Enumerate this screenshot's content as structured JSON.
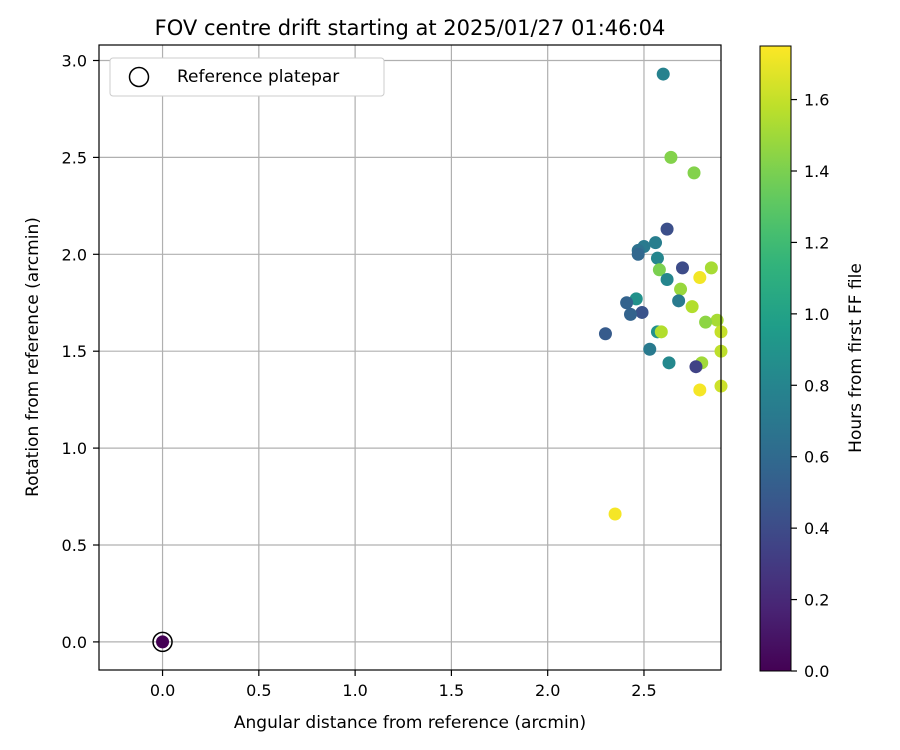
{
  "chart_data": {
    "type": "scatter",
    "title": "FOV centre drift starting at 2025/01/27 01:46:04",
    "xlabel": "Angular distance from reference (arcmin)",
    "ylabel": "Rotation from reference (arcmin)",
    "xlim": [
      -0.33,
      2.9
    ],
    "ylim": [
      -0.145,
      3.08
    ],
    "xticks": [
      "0.0",
      "0.5",
      "1.0",
      "1.5",
      "2.0",
      "2.5"
    ],
    "yticks": [
      "0.0",
      "0.5",
      "1.0",
      "1.5",
      "2.0",
      "2.5",
      "3.0"
    ],
    "grid": true,
    "legend": {
      "placement": "top-left",
      "entries": [
        "Reference platepar"
      ]
    },
    "reference_point": {
      "x": 0.0,
      "y": 0.0,
      "hours": 0.0
    },
    "colorbar": {
      "label": "Hours from first FF file",
      "range": [
        0.0,
        1.75
      ],
      "ticks": [
        "0.0",
        "0.2",
        "0.4",
        "0.6",
        "0.8",
        "1.0",
        "1.2",
        "1.4",
        "1.6"
      ],
      "colormap": "viridis"
    },
    "points": [
      {
        "x": 2.6,
        "y": 2.93,
        "hours": 0.78
      },
      {
        "x": 2.64,
        "y": 2.5,
        "hours": 1.42
      },
      {
        "x": 2.76,
        "y": 2.42,
        "hours": 1.42
      },
      {
        "x": 2.62,
        "y": 2.13,
        "hours": 0.42
      },
      {
        "x": 2.56,
        "y": 2.06,
        "hours": 0.75
      },
      {
        "x": 2.5,
        "y": 2.04,
        "hours": 0.72
      },
      {
        "x": 2.47,
        "y": 2.02,
        "hours": 0.65
      },
      {
        "x": 2.47,
        "y": 2.0,
        "hours": 0.58
      },
      {
        "x": 2.57,
        "y": 1.98,
        "hours": 0.8
      },
      {
        "x": 2.7,
        "y": 1.93,
        "hours": 0.4
      },
      {
        "x": 2.85,
        "y": 1.93,
        "hours": 1.52
      },
      {
        "x": 2.58,
        "y": 1.92,
        "hours": 1.4
      },
      {
        "x": 2.62,
        "y": 1.87,
        "hours": 0.8
      },
      {
        "x": 2.79,
        "y": 1.88,
        "hours": 1.72
      },
      {
        "x": 2.69,
        "y": 1.82,
        "hours": 1.48
      },
      {
        "x": 2.46,
        "y": 1.77,
        "hours": 0.88
      },
      {
        "x": 2.68,
        "y": 1.76,
        "hours": 0.72
      },
      {
        "x": 2.41,
        "y": 1.75,
        "hours": 0.55
      },
      {
        "x": 2.75,
        "y": 1.73,
        "hours": 1.55
      },
      {
        "x": 2.49,
        "y": 1.7,
        "hours": 0.45
      },
      {
        "x": 2.43,
        "y": 1.69,
        "hours": 0.55
      },
      {
        "x": 2.88,
        "y": 1.66,
        "hours": 1.52
      },
      {
        "x": 2.82,
        "y": 1.65,
        "hours": 1.45
      },
      {
        "x": 2.9,
        "y": 1.6,
        "hours": 1.6
      },
      {
        "x": 2.57,
        "y": 1.6,
        "hours": 0.88
      },
      {
        "x": 2.59,
        "y": 1.6,
        "hours": 1.55
      },
      {
        "x": 2.3,
        "y": 1.59,
        "hours": 0.5
      },
      {
        "x": 2.53,
        "y": 1.51,
        "hours": 0.72
      },
      {
        "x": 2.9,
        "y": 1.5,
        "hours": 1.58
      },
      {
        "x": 2.63,
        "y": 1.44,
        "hours": 0.82
      },
      {
        "x": 2.8,
        "y": 1.44,
        "hours": 1.5
      },
      {
        "x": 2.77,
        "y": 1.42,
        "hours": 0.35
      },
      {
        "x": 2.79,
        "y": 1.3,
        "hours": 1.73
      },
      {
        "x": 2.9,
        "y": 1.32,
        "hours": 1.62
      },
      {
        "x": 2.35,
        "y": 0.66,
        "hours": 1.73
      }
    ]
  }
}
